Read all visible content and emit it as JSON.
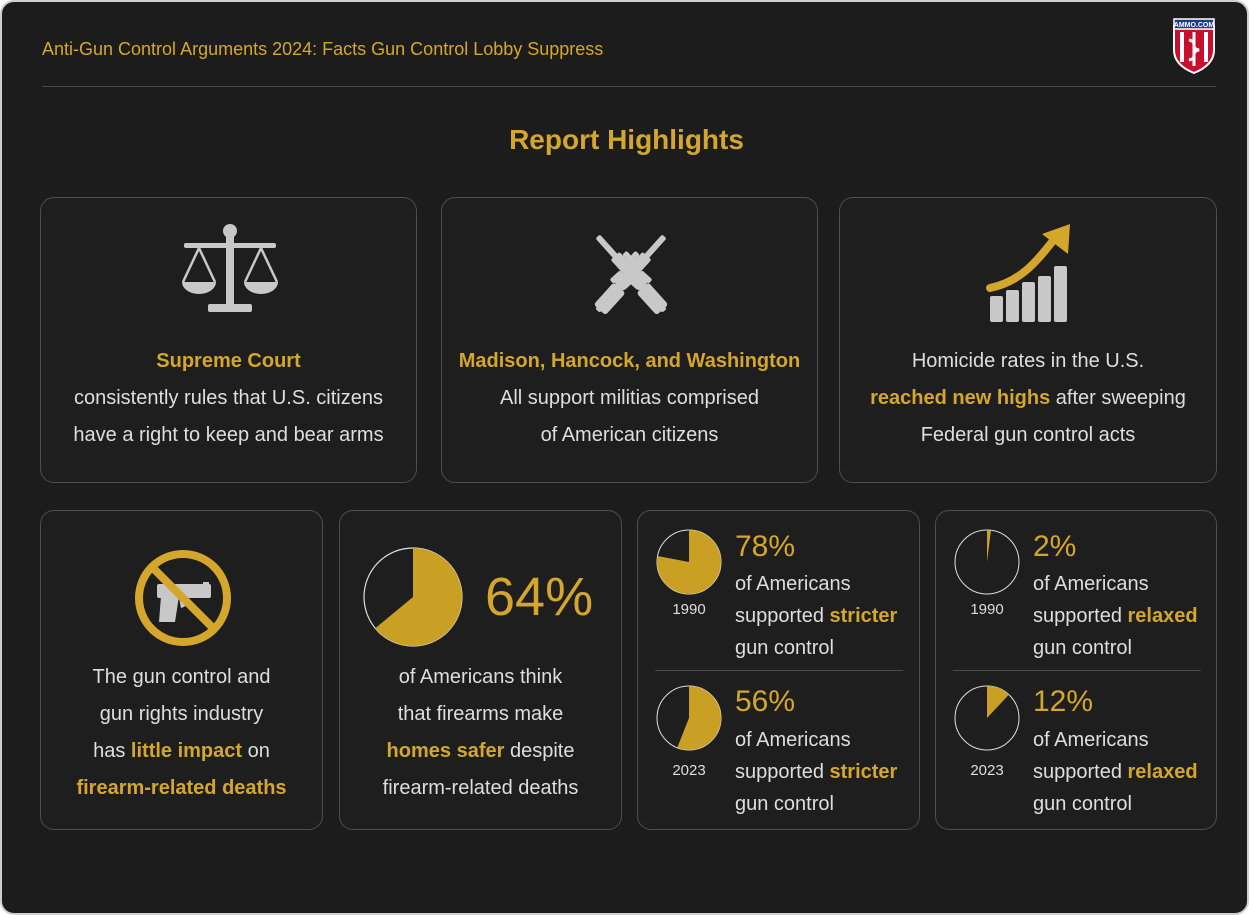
{
  "header": {
    "title": "Anti-Gun Control Arguments 2024: Facts Gun Control Lobby Suppress",
    "logo_text": "AMMO.COM"
  },
  "section_title": "Report Highlights",
  "colors": {
    "accent": "#d4a72c",
    "background": "#1c1c1c",
    "text": "#dedede",
    "icon_gray": "#c8c8c8"
  },
  "cards": {
    "court": {
      "icon": "scales-icon",
      "line1_bold": "Supreme Court",
      "line2": "consistently rules that U.S. citizens",
      "line3": "have a right to keep and bear arms"
    },
    "founders": {
      "icon": "crossed-rifles-icon",
      "line1_bold": "Madison, Hancock, and Washington",
      "line2": "All support militias comprised",
      "line3": "of American citizens"
    },
    "homicide": {
      "icon": "rising-bar-chart-icon",
      "line1": "Homicide rates in the U.S.",
      "line2_bold": "reached new highs",
      "line2_rest": " after sweeping",
      "line3": "Federal gun control acts"
    },
    "industry": {
      "icon": "no-gun-icon",
      "line1": "The gun control and",
      "line2": "gun rights industry",
      "line3_pre": "has ",
      "line3_bold": "little impact",
      "line3_post": " on",
      "line4_bold": "firearm-related deaths"
    },
    "homes": {
      "percent": "64%",
      "value": 0.64,
      "line1": "of Americans think",
      "line2": "that firearms make",
      "line3_bold": "homes safer",
      "line3_post": " despite",
      "line4": "firearm-related deaths"
    }
  },
  "stricter": [
    {
      "year": "1990",
      "percent": "78%",
      "value": 0.78,
      "line1": "of Americans",
      "line2_pre": "supported ",
      "line2_bold": "stricter",
      "line3": "gun control"
    },
    {
      "year": "2023",
      "percent": "56%",
      "value": 0.56,
      "line1": "of Americans",
      "line2_pre": "supported ",
      "line2_bold": "stricter",
      "line3": "gun control"
    }
  ],
  "relaxed": [
    {
      "year": "1990",
      "percent": "2%",
      "value": 0.02,
      "line1": "of Americans",
      "line2_pre": "supported ",
      "line2_bold": "relaxed",
      "line3": "gun control"
    },
    {
      "year": "2023",
      "percent": "12%",
      "value": 0.12,
      "line1": "of Americans",
      "line2_pre": "supported ",
      "line2_bold": "relaxed",
      "line3": "gun control"
    }
  ]
}
